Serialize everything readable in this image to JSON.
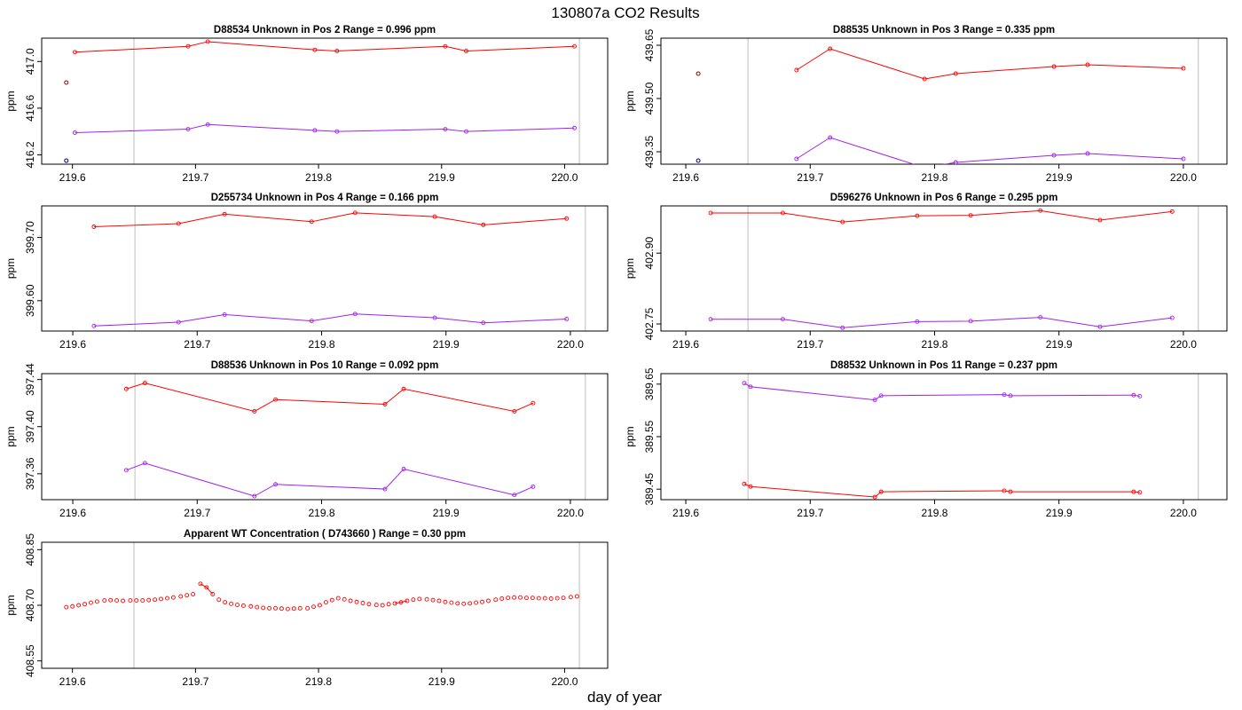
{
  "title": "130807a  CO2 Results",
  "xlabel": "day of year",
  "chart_data": [
    {
      "type": "line",
      "title": "D88534    Unknown in Pos 2         Range =  0.996 ppm",
      "ylabel": "ppm",
      "xlim": [
        219.575,
        220.035
      ],
      "ylim": [
        416.12,
        417.2
      ],
      "xticks": [
        219.6,
        219.7,
        219.8,
        219.9,
        220.0
      ],
      "xtick_labels": [
        "219.6",
        "219.7",
        "219.8",
        "219.9",
        "220.0"
      ],
      "yticks": [
        416.2,
        416.6,
        417.0
      ],
      "ytick_labels": [
        "416.2",
        "416.6",
        "417.0"
      ],
      "vlines": [
        219.65,
        220.012
      ],
      "series": [
        {
          "color": "#ff0000",
          "x": [
            219.602,
            219.694,
            219.71,
            219.797,
            219.815,
            219.903,
            219.92,
            220.008
          ],
          "y": [
            417.08,
            417.13,
            417.17,
            417.1,
            417.09,
            417.13,
            417.09,
            417.13
          ]
        },
        {
          "color": "#a020f0",
          "x": [
            219.602,
            219.694,
            219.71,
            219.797,
            219.815,
            219.903,
            219.92,
            220.008
          ],
          "y": [
            416.39,
            416.42,
            416.46,
            416.41,
            416.4,
            416.42,
            416.4,
            416.43
          ]
        }
      ],
      "points": [
        {
          "color": "#8b0000",
          "x": 219.595,
          "y": 416.82
        },
        {
          "color": "#000080",
          "x": 219.595,
          "y": 416.15
        }
      ]
    },
    {
      "type": "line",
      "title": "D88535    Unknown in Pos 3         Range =  0.335 ppm",
      "ylabel": "ppm",
      "xlim": [
        219.58,
        220.035
      ],
      "ylim": [
        439.315,
        439.67
      ],
      "xticks": [
        219.6,
        219.7,
        219.8,
        219.9,
        220.0
      ],
      "xtick_labels": [
        "219.6",
        "219.7",
        "219.8",
        "219.9",
        "220.0"
      ],
      "yticks": [
        439.35,
        439.5,
        439.65
      ],
      "ytick_labels": [
        "439.35",
        "439.50",
        "439.65"
      ],
      "vlines": [
        219.65,
        220.012
      ],
      "series": [
        {
          "color": "#ff0000",
          "x": [
            219.689,
            219.716,
            219.792,
            219.817,
            219.896,
            219.923,
            220.0
          ],
          "y": [
            439.58,
            439.64,
            439.555,
            439.57,
            439.59,
            439.595,
            439.585
          ]
        },
        {
          "color": "#a020f0",
          "x": [
            219.689,
            219.716,
            219.792,
            219.817,
            219.896,
            219.923,
            220.0
          ],
          "y": [
            439.33,
            439.39,
            439.305,
            439.32,
            439.34,
            439.345,
            439.33
          ]
        }
      ],
      "points": [
        {
          "color": "#8b0000",
          "x": 219.61,
          "y": 439.57
        },
        {
          "color": "#000080",
          "x": 219.61,
          "y": 439.325
        }
      ]
    },
    {
      "type": "line",
      "title": "D255734    Unknown in Pos 4         Range =  0.166 ppm",
      "ylabel": "ppm",
      "xlim": [
        219.575,
        220.03
      ],
      "ylim": [
        399.552,
        399.75
      ],
      "xticks": [
        219.6,
        219.7,
        219.8,
        219.9,
        220.0
      ],
      "xtick_labels": [
        "219.6",
        "219.7",
        "219.8",
        "219.9",
        "220.0"
      ],
      "yticks": [
        399.6,
        399.7
      ],
      "ytick_labels": [
        "399.60",
        "399.70"
      ],
      "vlines": [
        219.65,
        220.012
      ],
      "series": [
        {
          "color": "#ff0000",
          "x": [
            219.617,
            219.685,
            219.722,
            219.792,
            219.827,
            219.891,
            219.93,
            219.997
          ],
          "y": [
            399.717,
            399.722,
            399.737,
            399.725,
            399.739,
            399.733,
            399.72,
            399.73
          ]
        },
        {
          "color": "#a020f0",
          "x": [
            219.617,
            219.685,
            219.722,
            219.792,
            219.827,
            219.891,
            219.93,
            219.997
          ],
          "y": [
            399.56,
            399.566,
            399.578,
            399.568,
            399.579,
            399.573,
            399.565,
            399.571
          ]
        }
      ]
    },
    {
      "type": "line",
      "title": "D596276    Unknown in Pos 6         Range =  0.295 ppm",
      "ylabel": "ppm",
      "xlim": [
        219.58,
        220.035
      ],
      "ylim": [
        402.735,
        403.0
      ],
      "xticks": [
        219.6,
        219.7,
        219.8,
        219.9,
        220.0
      ],
      "xtick_labels": [
        "219.6",
        "219.7",
        "219.8",
        "219.9",
        "220.0"
      ],
      "yticks": [
        402.75,
        402.9
      ],
      "ytick_labels": [
        "402.75",
        "402.90"
      ],
      "vlines": [
        219.65,
        220.012
      ],
      "series": [
        {
          "color": "#ff0000",
          "x": [
            219.62,
            219.678,
            219.726,
            219.786,
            219.829,
            219.885,
            219.933,
            219.991
          ],
          "y": [
            402.985,
            402.985,
            402.966,
            402.979,
            402.98,
            402.99,
            402.97,
            402.988
          ]
        },
        {
          "color": "#a020f0",
          "x": [
            219.62,
            219.678,
            219.726,
            219.786,
            219.829,
            219.885,
            219.933,
            219.991
          ],
          "y": [
            402.76,
            402.76,
            402.742,
            402.755,
            402.756,
            402.764,
            402.744,
            402.763
          ]
        }
      ]
    },
    {
      "type": "line",
      "title": "D88536    Unknown in Pos 10         Range =  0.092 ppm",
      "ylabel": "ppm",
      "xlim": [
        219.575,
        220.03
      ],
      "ylim": [
        397.338,
        397.445
      ],
      "xticks": [
        219.6,
        219.7,
        219.8,
        219.9,
        220.0
      ],
      "xtick_labels": [
        "219.6",
        "219.7",
        "219.8",
        "219.9",
        "220.0"
      ],
      "yticks": [
        397.36,
        397.4,
        397.44
      ],
      "ytick_labels": [
        "397.36",
        "397.40",
        "397.44"
      ],
      "vlines": [
        219.65,
        220.012
      ],
      "series": [
        {
          "color": "#ff0000",
          "x": [
            219.643,
            219.658,
            219.746,
            219.763,
            219.851,
            219.866,
            219.955,
            219.97
          ],
          "y": [
            397.432,
            397.437,
            397.413,
            397.423,
            397.419,
            397.432,
            397.413,
            397.42
          ]
        },
        {
          "color": "#a020f0",
          "x": [
            219.643,
            219.658,
            219.746,
            219.763,
            219.851,
            219.866,
            219.955,
            219.97
          ],
          "y": [
            397.363,
            397.369,
            397.341,
            397.351,
            397.347,
            397.364,
            397.342,
            397.349
          ]
        }
      ]
    },
    {
      "type": "line",
      "title": "D88532    Unknown in Pos 11         Range =  0.237 ppm",
      "ylabel": "ppm",
      "xlim": [
        219.58,
        220.035
      ],
      "ylim": [
        389.43,
        389.67
      ],
      "xticks": [
        219.6,
        219.7,
        219.8,
        219.9,
        220.0
      ],
      "xtick_labels": [
        "219.6",
        "219.7",
        "219.8",
        "219.9",
        "220.0"
      ],
      "yticks": [
        389.45,
        389.55,
        389.65
      ],
      "ytick_labels": [
        "389.45",
        "389.55",
        "389.65"
      ],
      "vlines": [
        219.65,
        220.012
      ],
      "series": [
        {
          "color": "#ff0000",
          "x": [
            219.647,
            219.652,
            219.752,
            219.757,
            219.856,
            219.861,
            219.96,
            219.965
          ],
          "y": [
            389.46,
            389.455,
            389.435,
            389.445,
            389.447,
            389.445,
            389.445,
            389.444
          ]
        },
        {
          "color": "#a020f0",
          "x": [
            219.647,
            219.652,
            219.752,
            219.757,
            219.856,
            219.861,
            219.96,
            219.965
          ],
          "y": [
            389.652,
            389.645,
            389.62,
            389.628,
            389.63,
            389.628,
            389.629,
            389.627
          ]
        }
      ]
    },
    {
      "type": "scatter",
      "title": "Apparent WT Concentration ( D743660 )         Range = 0.30 ppm",
      "ylabel": "ppm",
      "xlim": [
        219.575,
        220.035
      ],
      "ylim": [
        408.53,
        408.87
      ],
      "xticks": [
        219.6,
        219.7,
        219.8,
        219.9,
        220.0
      ],
      "xtick_labels": [
        "219.6",
        "219.7",
        "219.8",
        "219.9",
        "220.0"
      ],
      "yticks": [
        408.55,
        408.7,
        408.85
      ],
      "ytick_labels": [
        "408.55",
        "408.70",
        "408.85"
      ],
      "vlines": [
        219.65,
        220.012
      ],
      "connect_ranges": [
        [
          21,
          23
        ],
        [
          52,
          54
        ]
      ],
      "series": [
        {
          "color": "#ff0000",
          "x": [
            219.595,
            219.6,
            219.605,
            219.61,
            219.615,
            219.62,
            219.626,
            219.631,
            219.636,
            219.641,
            219.647,
            219.652,
            219.657,
            219.662,
            219.667,
            219.672,
            219.677,
            219.682,
            219.688,
            219.693,
            219.698,
            219.704,
            219.709,
            219.714,
            219.719,
            219.724,
            219.729,
            219.734,
            219.739,
            219.745,
            219.75,
            219.755,
            219.76,
            219.765,
            219.77,
            219.775,
            219.78,
            219.785,
            219.791,
            219.796,
            219.801,
            219.806,
            219.811,
            219.816,
            219.821,
            219.826,
            219.831,
            219.836,
            219.841,
            219.847,
            219.852,
            219.857,
            219.862,
            219.867,
            219.872,
            219.877,
            219.882,
            219.888,
            219.893,
            219.898,
            219.903,
            219.908,
            219.913,
            219.918,
            219.923,
            219.928,
            219.933,
            219.938,
            219.944,
            219.949,
            219.954,
            219.959,
            219.964,
            219.969,
            219.974,
            219.979,
            219.984,
            219.989,
            219.994,
            219.999,
            220.005,
            220.01
          ],
          "y": [
            408.695,
            408.697,
            408.7,
            408.703,
            408.707,
            408.71,
            408.713,
            408.714,
            408.713,
            408.712,
            408.713,
            408.713,
            408.713,
            408.714,
            408.715,
            408.717,
            408.719,
            408.721,
            408.724,
            408.727,
            408.73,
            408.758,
            408.748,
            408.73,
            408.715,
            408.708,
            408.704,
            408.701,
            408.699,
            408.697,
            408.695,
            408.693,
            408.692,
            408.692,
            408.691,
            408.69,
            408.691,
            408.692,
            408.692,
            408.696,
            408.7,
            408.708,
            408.714,
            408.719,
            408.716,
            408.712,
            408.709,
            408.706,
            408.703,
            408.701,
            408.7,
            408.703,
            408.705,
            408.708,
            408.712,
            408.715,
            408.717,
            408.716,
            408.714,
            408.712,
            408.709,
            408.707,
            408.705,
            408.704,
            408.705,
            408.707,
            408.709,
            408.712,
            408.715,
            408.718,
            408.72,
            408.721,
            408.721,
            408.72,
            408.72,
            408.719,
            408.719,
            408.718,
            408.719,
            408.72,
            408.722,
            408.724
          ]
        }
      ]
    }
  ]
}
